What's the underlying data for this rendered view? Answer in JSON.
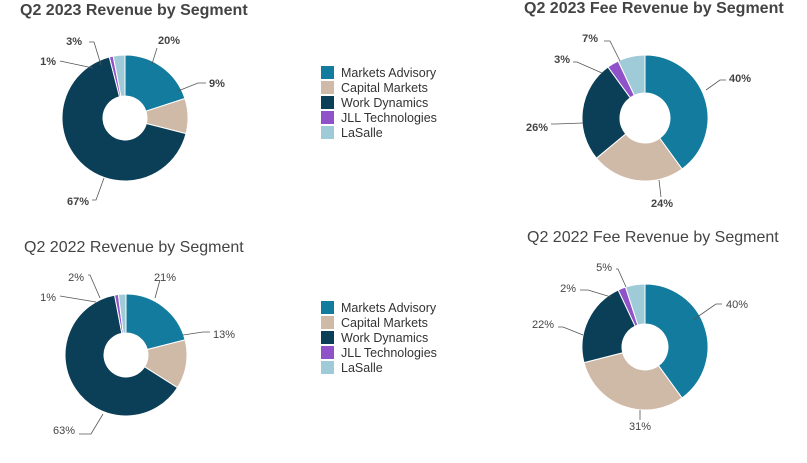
{
  "colors": [
    "#127b9e",
    "#cfb9a7",
    "#0b3f57",
    "#8f52c9",
    "#9fcbd9"
  ],
  "legend_top": [
    "Markets Advisory",
    "Capital Markets",
    "Work Dynamics",
    "JLL Technologies",
    "LaSalle"
  ],
  "legend_bottom": [
    "Markets Advisory",
    "Capital Markets",
    "Work Dynamics",
    "JLL Technologies",
    "LaSalle"
  ],
  "chart_data": [
    {
      "type": "pie",
      "title": "Q2 2023 Revenue by Segment",
      "categories": [
        "Markets Advisory",
        "Capital Markets",
        "Work Dynamics",
        "JLL Technologies",
        "LaSalle"
      ],
      "values": [
        20,
        9,
        67,
        1,
        3
      ],
      "labels": [
        "20%",
        "9%",
        "67%",
        "1%",
        "3%"
      ],
      "donut": true
    },
    {
      "type": "pie",
      "title": "Q2 2023 Fee Revenue by Segment",
      "categories": [
        "Markets Advisory",
        "Capital Markets",
        "Work Dynamics",
        "JLL Technologies",
        "LaSalle"
      ],
      "values": [
        40,
        24,
        26,
        3,
        7
      ],
      "labels": [
        "40%",
        "24%",
        "26%",
        "3%",
        "7%"
      ],
      "donut": true
    },
    {
      "type": "pie",
      "title": "Q2 2022 Revenue by Segment",
      "categories": [
        "Markets Advisory",
        "Capital Markets",
        "Work Dynamics",
        "JLL Technologies",
        "LaSalle"
      ],
      "values": [
        21,
        13,
        63,
        1,
        2
      ],
      "labels": [
        "21%",
        "13%",
        "63%",
        "1%",
        "2%"
      ],
      "donut": true
    },
    {
      "type": "pie",
      "title": "Q2 2022 Fee Revenue by Segment",
      "categories": [
        "Markets Advisory",
        "Capital Markets",
        "Work Dynamics",
        "JLL Technologies",
        "LaSalle"
      ],
      "values": [
        40,
        31,
        22,
        2,
        5
      ],
      "labels": [
        "40%",
        "31%",
        "22%",
        "2%",
        "5%"
      ],
      "donut": true
    }
  ]
}
